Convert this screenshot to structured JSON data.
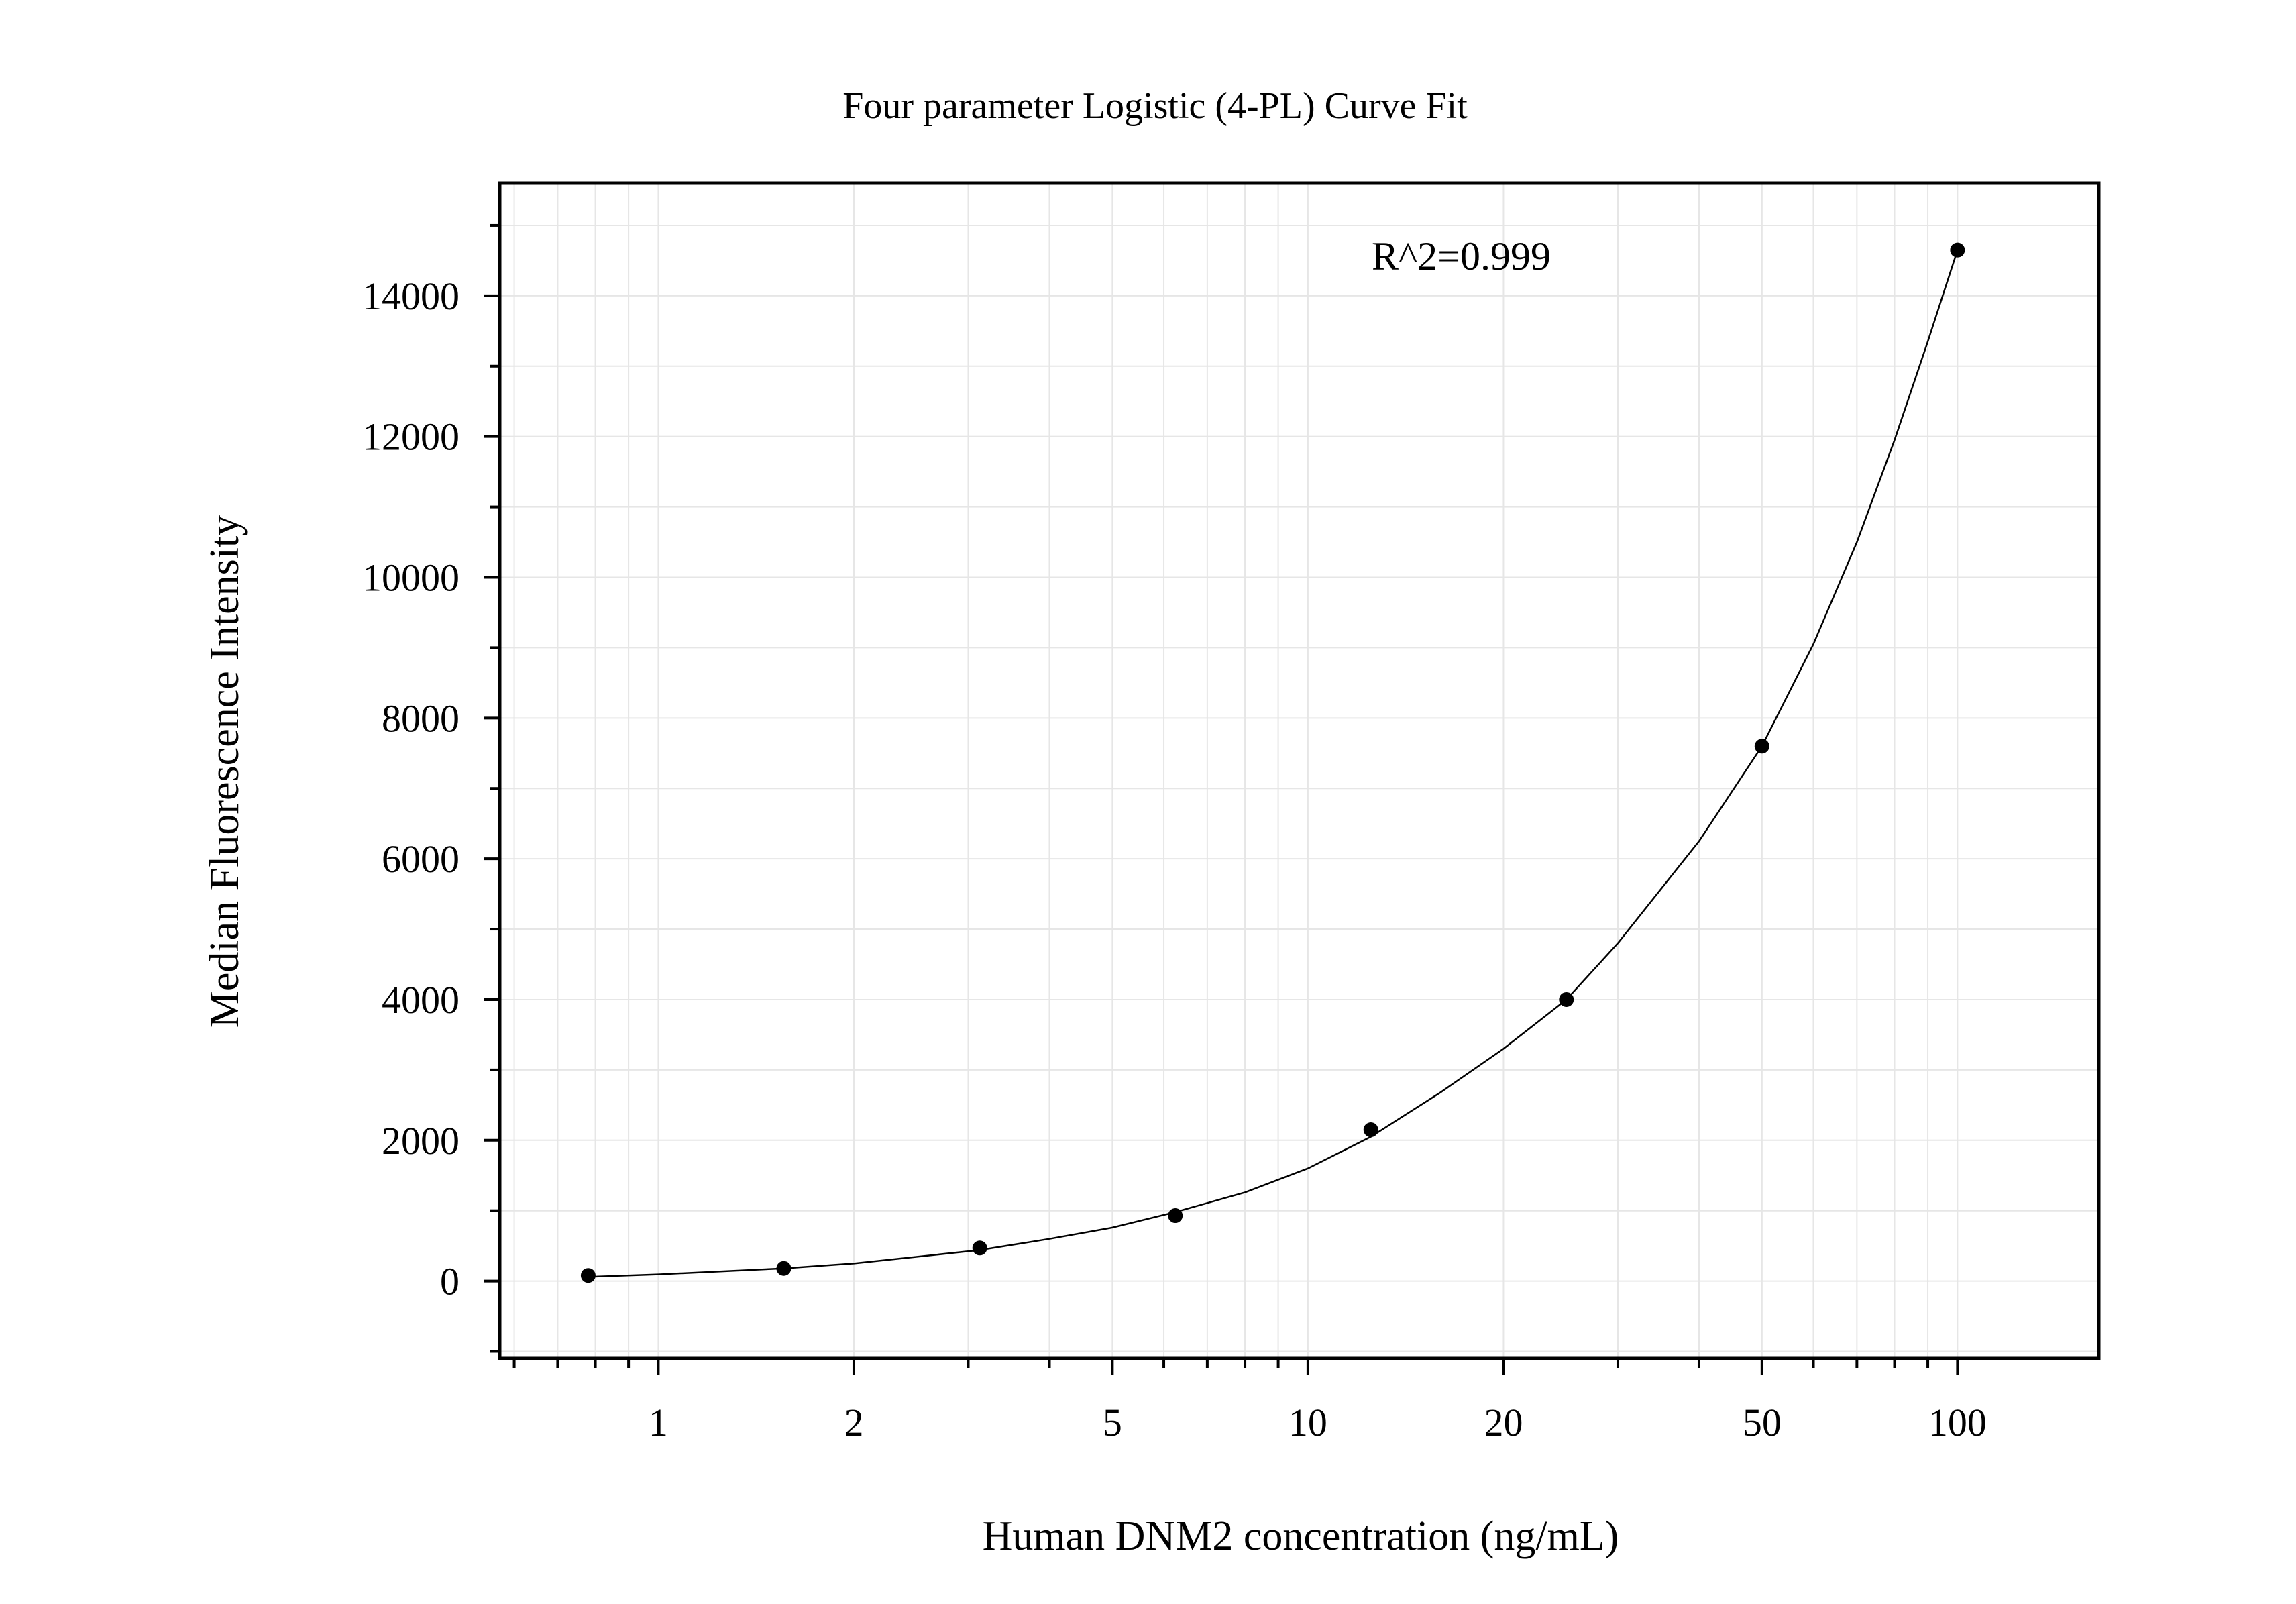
{
  "chart_data": {
    "type": "scatter",
    "title": "Four parameter Logistic (4-PL) Curve Fit",
    "xlabel": "Human DNM2 concentration (ng/mL)",
    "ylabel": "Median Fluorescence Intensity",
    "x_scale": "log",
    "xlim": [
      0.57,
      165
    ],
    "ylim": [
      -1100,
      15600
    ],
    "x_ticks": [
      1,
      2,
      5,
      10,
      20,
      50,
      100
    ],
    "x_tick_labels": [
      "1",
      "2",
      "5",
      "10",
      "20",
      "50",
      "100"
    ],
    "y_ticks": [
      0,
      2000,
      4000,
      6000,
      8000,
      10000,
      12000,
      14000
    ],
    "y_tick_labels": [
      "0",
      "2000",
      "4000",
      "6000",
      "8000",
      "10000",
      "12000",
      "14000"
    ],
    "grid": true,
    "annotation": "R^2=0.999",
    "series": [
      {
        "kind": "points",
        "x": [
          0.78,
          1.56,
          3.125,
          6.25,
          12.5,
          25,
          50,
          100
        ],
        "y": [
          80,
          180,
          470,
          930,
          2150,
          4000,
          7600,
          14650
        ]
      }
    ],
    "fit_curve": {
      "x": [
        0.78,
        1.0,
        1.56,
        2.0,
        3.125,
        4.0,
        5.0,
        6.25,
        8.0,
        10.0,
        12.5,
        16.0,
        20.0,
        25.0,
        30.0,
        40.0,
        50.0,
        60.0,
        70.0,
        80.0,
        90.0,
        100.0
      ],
      "y": [
        60,
        95,
        180,
        250,
        440,
        600,
        760,
        980,
        1260,
        1600,
        2050,
        2680,
        3300,
        4000,
        4800,
        6250,
        7600,
        9050,
        10500,
        11950,
        13350,
        14650
      ]
    },
    "colors": {
      "points": "#000000",
      "curve": "#000000",
      "grid": "#e6e6e6",
      "frame": "#000000"
    }
  }
}
